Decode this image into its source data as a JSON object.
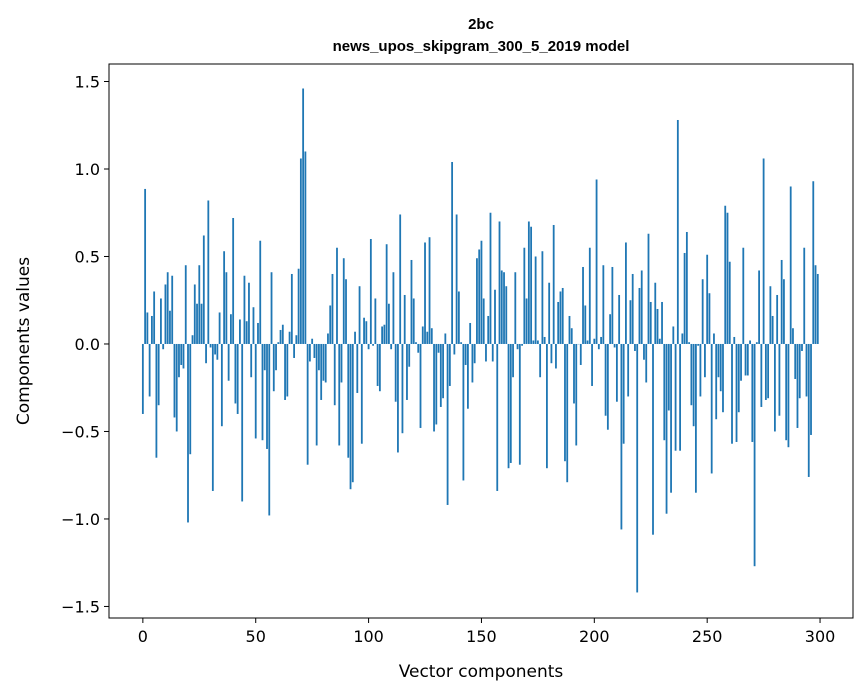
{
  "chart_data": {
    "type": "bar",
    "title": "2bc",
    "subtitle": "news_upos_skipgram_300_5_2019 model",
    "xlabel": "Vector components",
    "ylabel": "Components values",
    "xlim": [
      -15,
      314.6
    ],
    "ylim": [
      -1.566,
      1.6
    ],
    "xticks": [
      0,
      50,
      100,
      150,
      200,
      250,
      300
    ],
    "xtick_labels": [
      "0",
      "50",
      "100",
      "150",
      "200",
      "250",
      "300"
    ],
    "yticks": [
      -1.5,
      -1.0,
      -0.5,
      0.0,
      0.5,
      1.0,
      1.5
    ],
    "ytick_labels": [
      "−1.5",
      "−1.0",
      "−0.5",
      "0.0",
      "0.5",
      "1.0",
      "1.5"
    ],
    "grid": false,
    "bar_color": "#1f77b4",
    "values": [
      -0.4,
      0.886,
      0.18,
      -0.3,
      0.16,
      0.3,
      -0.65,
      -0.35,
      0.26,
      -0.03,
      0.34,
      0.41,
      0.19,
      0.39,
      -0.42,
      -0.5,
      -0.19,
      -0.12,
      -0.14,
      0.45,
      -1.02,
      -0.63,
      0.05,
      0.34,
      0.23,
      0.45,
      0.23,
      0.62,
      -0.11,
      0.82,
      -0.02,
      -0.84,
      -0.06,
      -0.09,
      0.18,
      -0.47,
      0.53,
      0.41,
      -0.21,
      0.17,
      0.72,
      -0.34,
      -0.4,
      0.14,
      -0.9,
      0.39,
      0.13,
      0.35,
      -0.19,
      0.21,
      -0.54,
      0.12,
      0.59,
      -0.55,
      -0.15,
      -0.6,
      -0.98,
      0.41,
      -0.27,
      -0.15,
      0.01,
      0.08,
      0.11,
      -0.32,
      -0.3,
      0.07,
      0.4,
      -0.08,
      0.05,
      0.43,
      1.06,
      1.46,
      1.1,
      -0.69,
      -0.1,
      0.03,
      -0.08,
      -0.58,
      -0.15,
      -0.32,
      -0.21,
      -0.22,
      0.06,
      0.22,
      0.4,
      -0.35,
      0.55,
      -0.58,
      -0.22,
      0.49,
      0.37,
      -0.65,
      -0.83,
      -0.79,
      0.07,
      -0.28,
      0.33,
      -0.57,
      0.15,
      0.13,
      -0.03,
      0.6,
      -0.01,
      0.26,
      -0.24,
      -0.27,
      0.1,
      0.11,
      0.57,
      0.23,
      -0.03,
      0.41,
      -0.33,
      -0.62,
      0.74,
      -0.51,
      0.28,
      -0.32,
      -0.13,
      0.48,
      0.26,
      0.01,
      -0.05,
      -0.48,
      0.1,
      0.58,
      0.07,
      0.61,
      0.09,
      -0.5,
      -0.46,
      -0.05,
      -0.36,
      -0.31,
      0.06,
      -0.92,
      -0.24,
      1.04,
      -0.06,
      0.74,
      0.3,
      0.01,
      -0.78,
      -0.12,
      -0.37,
      0.12,
      -0.22,
      -0.11,
      0.49,
      0.54,
      0.59,
      0.26,
      -0.1,
      0.16,
      0.75,
      -0.1,
      0.31,
      -0.84,
      0.7,
      0.42,
      0.41,
      0.33,
      -0.71,
      -0.68,
      -0.19,
      0.41,
      -0.03,
      -0.69,
      -0.01,
      0.55,
      0.26,
      0.7,
      0.67,
      0.02,
      0.5,
      0.02,
      -0.19,
      0.53,
      0.04,
      -0.71,
      0.35,
      -0.11,
      0.68,
      -0.14,
      0.24,
      0.3,
      0.32,
      -0.67,
      -0.79,
      0.16,
      0.09,
      -0.34,
      -0.58,
      0.0,
      -0.12,
      0.44,
      0.22,
      0.02,
      0.55,
      -0.24,
      0.03,
      0.94,
      -0.03,
      0.04,
      0.45,
      -0.41,
      -0.49,
      0.17,
      0.44,
      -0.02,
      -0.33,
      0.28,
      -1.06,
      -0.57,
      0.58,
      -0.3,
      0.25,
      0.4,
      -0.04,
      -1.42,
      0.32,
      0.42,
      -0.09,
      -0.22,
      0.63,
      0.24,
      -1.09,
      0.35,
      0.2,
      0.03,
      0.24,
      -0.55,
      -0.97,
      -0.38,
      -0.85,
      0.1,
      -0.61,
      1.28,
      -0.61,
      0.06,
      0.52,
      0.64,
      0.01,
      -0.35,
      -0.47,
      -0.85,
      -0.01,
      -0.3,
      0.37,
      -0.19,
      0.51,
      0.29,
      -0.74,
      0.06,
      -0.43,
      -0.19,
      -0.27,
      -0.39,
      0.79,
      0.75,
      0.47,
      -0.57,
      0.04,
      -0.56,
      -0.39,
      -0.21,
      0.55,
      -0.18,
      -0.18,
      0.02,
      -0.56,
      -1.27,
      0.01,
      0.42,
      -0.36,
      1.06,
      -0.32,
      -0.31,
      0.33,
      0.16,
      -0.5,
      0.28,
      -0.41,
      0.48,
      0.37,
      -0.55,
      -0.59,
      0.9,
      0.09,
      -0.2,
      -0.48,
      -0.31,
      -0.04,
      0.55,
      -0.3,
      -0.76,
      -0.52,
      0.93,
      0.45,
      0.4
    ]
  }
}
